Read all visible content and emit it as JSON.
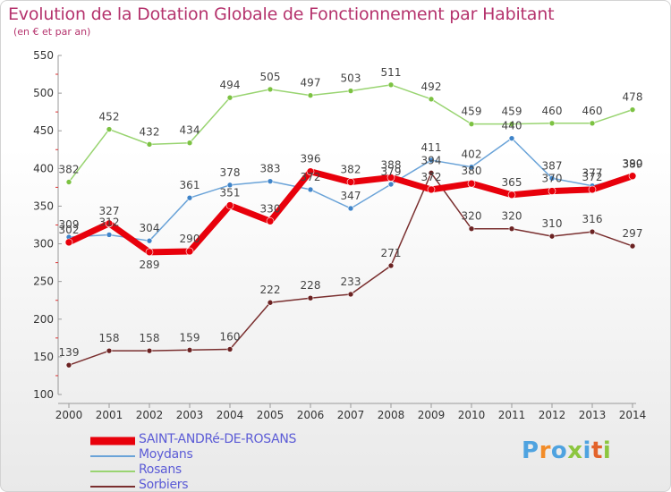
{
  "title": "Evolution de la Dotation Globale de Fonctionnement par Habitant",
  "subtitle": "(en € et par an)",
  "logo": {
    "text": "Proxiti",
    "colors": [
      "#4fa3e0",
      "#f28c28",
      "#4fa3e0",
      "#8cc63f",
      "#4fa3e0",
      "#e3632b",
      "#8cc63f"
    ]
  },
  "chart_data": {
    "type": "line",
    "x": [
      2000,
      2001,
      2002,
      2003,
      2004,
      2005,
      2006,
      2007,
      2008,
      2009,
      2010,
      2011,
      2012,
      2013,
      2014
    ],
    "ylim": [
      100,
      550
    ],
    "yticks": [
      100,
      150,
      200,
      250,
      300,
      350,
      400,
      450,
      500,
      550
    ],
    "grid": false,
    "legend_position": "bottom",
    "series": [
      {
        "name": "SAINT-ANDRé-DE-ROSANS",
        "color": "#e8000b",
        "marker": "#e8000b",
        "width": 7,
        "values": [
          302,
          327,
          289,
          290,
          351,
          330,
          396,
          382,
          388,
          372,
          380,
          365,
          370,
          372,
          390
        ],
        "labels": [
          "302",
          "327",
          "289",
          "290",
          "351",
          "330",
          "396",
          "382",
          "388",
          "372",
          "380",
          "365",
          "370",
          "372",
          "390"
        ]
      },
      {
        "name": "Moydans",
        "color": "#6aa3d8",
        "marker": "#3f84c9",
        "width": 1.5,
        "values": [
          309,
          312,
          304,
          361,
          378,
          383,
          372,
          347,
          379,
          411,
          402,
          440,
          387,
          377,
          389
        ],
        "labels": [
          "309",
          "312",
          "304",
          "361",
          "378",
          "383",
          "372",
          "347",
          "379",
          "411",
          "402",
          "440",
          "387",
          "377",
          "389"
        ]
      },
      {
        "name": "Rosans",
        "color": "#99d471",
        "marker": "#7cc242",
        "width": 1.5,
        "values": [
          382,
          452,
          432,
          434,
          494,
          505,
          497,
          503,
          511,
          492,
          459,
          459,
          460,
          460,
          478
        ],
        "labels": [
          "382",
          "452",
          "432",
          "434",
          "494",
          "505",
          "497",
          "503",
          "511",
          "492",
          "459",
          "459",
          "460",
          "460",
          "478"
        ]
      },
      {
        "name": "Sorbiers",
        "color": "#7a2f2f",
        "marker": "#6b2222",
        "width": 1.5,
        "values": [
          139,
          158,
          158,
          159,
          160,
          222,
          228,
          233,
          271,
          394,
          320,
          320,
          310,
          316,
          297
        ],
        "labels": [
          "139",
          "158",
          "158",
          "159",
          "160",
          "222",
          "228",
          "233",
          "271",
          "394",
          "320",
          "320",
          "310",
          "316",
          "297"
        ]
      }
    ]
  }
}
